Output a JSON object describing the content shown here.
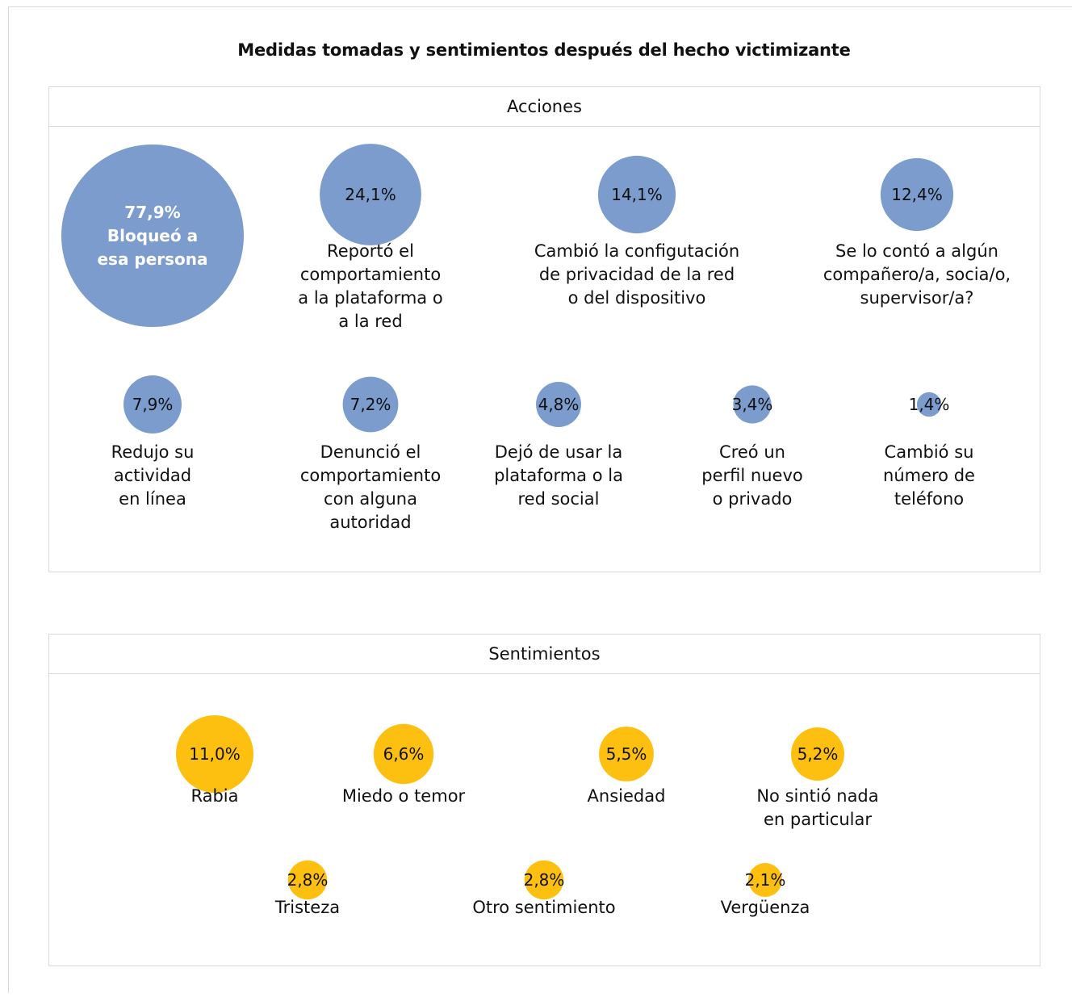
{
  "title": "Medidas tomadas y sentimientos después  del hecho victimizante",
  "colors": {
    "actions": "#7b9ccd",
    "feelings": "#fec010",
    "border": "#d9d9d9"
  },
  "chart_data": [
    {
      "type": "bubble",
      "panel_title": "Acciones",
      "unit": "%",
      "items": [
        {
          "value": 77.9,
          "value_label": "77,9%",
          "label_lines": [
            "Bloqueó a",
            "esa persona"
          ]
        },
        {
          "value": 24.1,
          "value_label": "24,1%",
          "label_lines": [
            "Reportó el",
            "comportamiento",
            "a la plataforma o",
            "a la red"
          ]
        },
        {
          "value": 14.1,
          "value_label": "14,1%",
          "label_lines": [
            "Cambió la configutación",
            "de privacidad de la red",
            "o del dispositivo"
          ]
        },
        {
          "value": 12.4,
          "value_label": "12,4%",
          "label_lines": [
            "Se lo contó a algún",
            "compañero/a, socia/o,",
            "supervisor/a?"
          ]
        },
        {
          "value": 7.9,
          "value_label": "7,9%",
          "label_lines": [
            "Redujo su",
            "actividad",
            "en línea"
          ]
        },
        {
          "value": 7.2,
          "value_label": "7,2%",
          "label_lines": [
            "Denunció el",
            "comportamiento",
            "con alguna",
            "autoridad"
          ]
        },
        {
          "value": 4.8,
          "value_label": "4,8%",
          "label_lines": [
            "Dejó de usar la",
            "plataforma o la",
            "red social"
          ]
        },
        {
          "value": 3.4,
          "value_label": "3,4%",
          "label_lines": [
            "Creó un",
            "perfil nuevo",
            "o privado"
          ]
        },
        {
          "value": 1.4,
          "value_label": "1,4%",
          "label_lines": [
            "Cambió su",
            "número de",
            "teléfono"
          ]
        }
      ]
    },
    {
      "type": "bubble",
      "panel_title": "Sentimientos",
      "unit": "%",
      "items": [
        {
          "value": 11.0,
          "value_label": "11,0%",
          "label_lines": [
            "Rabia"
          ]
        },
        {
          "value": 6.6,
          "value_label": "6,6%",
          "label_lines": [
            "Miedo o temor"
          ]
        },
        {
          "value": 5.5,
          "value_label": "5,5%",
          "label_lines": [
            "Ansiedad"
          ]
        },
        {
          "value": 5.2,
          "value_label": "5,2%",
          "label_lines": [
            "No sintió nada",
            "en particular"
          ]
        },
        {
          "value": 2.8,
          "value_label": "2,8%",
          "label_lines": [
            "Tristeza"
          ]
        },
        {
          "value": 2.8,
          "value_label": "2,8%",
          "label_lines": [
            "Otro sentimiento"
          ]
        },
        {
          "value": 2.1,
          "value_label": "2,1%",
          "label_lines": [
            "Vergüenza"
          ]
        }
      ]
    }
  ]
}
